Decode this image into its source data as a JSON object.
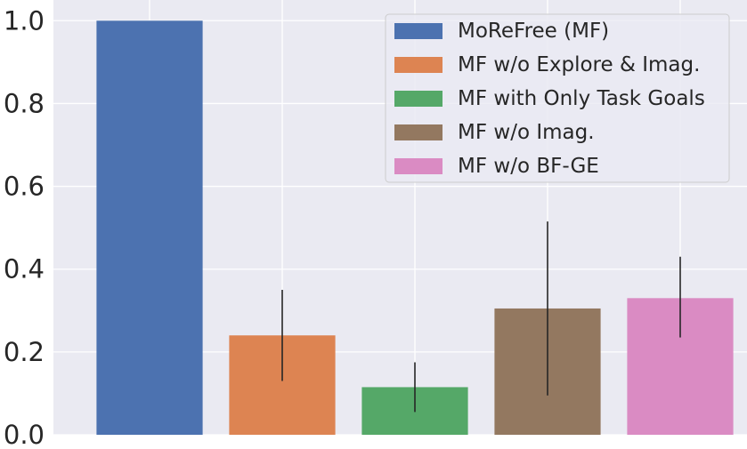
{
  "chart_data": {
    "type": "bar",
    "title": "",
    "xlabel": "",
    "ylabel": "",
    "ylim": [
      0,
      1.05
    ],
    "yticks": [
      0.0,
      0.2,
      0.4,
      0.6,
      0.8,
      1.0
    ],
    "ytick_labels": [
      "0.0",
      "0.2",
      "0.4",
      "0.6",
      "0.8",
      "1.0"
    ],
    "grid": true,
    "legend_position": "top-right",
    "background_color": "#eaeaf2",
    "series": [
      {
        "name": "MoReFree (MF)",
        "value": 1.0,
        "err_low": 1.0,
        "err_high": 1.0,
        "color": "#4c72b0"
      },
      {
        "name": "MF w/o Explore & Imag.",
        "value": 0.24,
        "err_low": 0.13,
        "err_high": 0.35,
        "color": "#dd8452"
      },
      {
        "name": "MF with Only Task Goals",
        "value": 0.115,
        "err_low": 0.055,
        "err_high": 0.175,
        "color": "#55a868"
      },
      {
        "name": "MF w/o Imag.",
        "value": 0.305,
        "err_low": 0.095,
        "err_high": 0.515,
        "color": "#937860"
      },
      {
        "name": "MF w/o BF-GE",
        "value": 0.33,
        "err_low": 0.235,
        "err_high": 0.43,
        "color": "#da8bc3"
      }
    ]
  }
}
